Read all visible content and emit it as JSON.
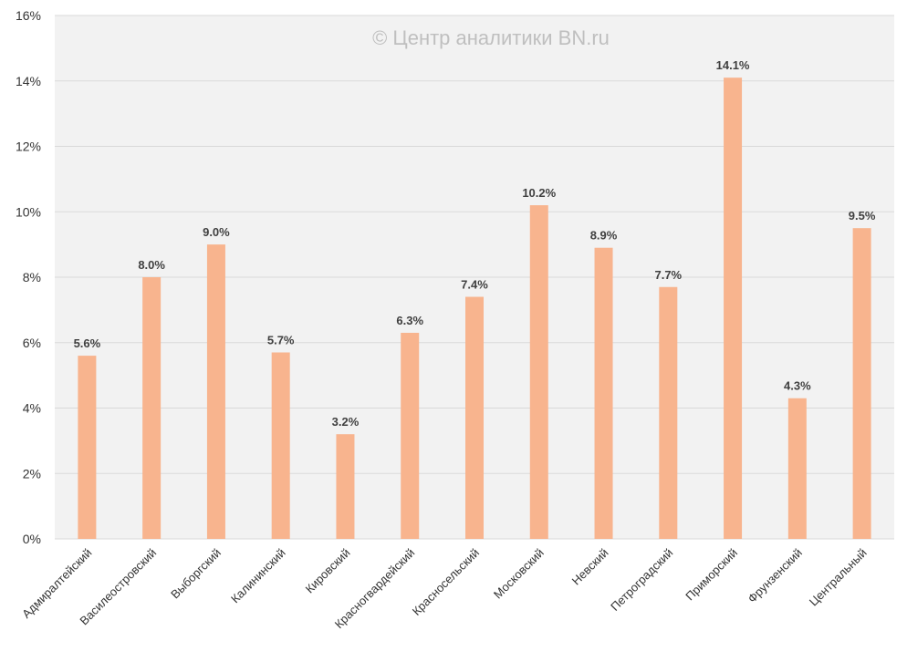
{
  "chart_data": {
    "type": "bar",
    "title": "",
    "watermark": "© Центр аналитики BN.ru",
    "xlabel": "",
    "ylabel": "",
    "ylim": [
      0,
      16
    ],
    "y_ticks": [
      {
        "value": 0,
        "label": "0%"
      },
      {
        "value": 2,
        "label": "2%"
      },
      {
        "value": 4,
        "label": "4%"
      },
      {
        "value": 6,
        "label": "6%"
      },
      {
        "value": 8,
        "label": "8%"
      },
      {
        "value": 10,
        "label": "10%"
      },
      {
        "value": 12,
        "label": "12%"
      },
      {
        "value": 14,
        "label": "14%"
      },
      {
        "value": 16,
        "label": "16%"
      }
    ],
    "grid": true,
    "categories": [
      "Адмиралтейский",
      "Василеостровский",
      "Выборгский",
      "Калининский",
      "Кировский",
      "Красногвардейский",
      "Красносельский",
      "Московский",
      "Невский",
      "Петроградский",
      "Приморский",
      "Фрунзенский",
      "Центральный"
    ],
    "values": [
      5.6,
      8.0,
      9.0,
      5.7,
      3.2,
      6.3,
      7.4,
      10.2,
      8.9,
      7.7,
      14.1,
      4.3,
      9.5
    ],
    "data_labels": [
      "5.6%",
      "8.0%",
      "9.0%",
      "5.7%",
      "3.2%",
      "6.3%",
      "7.4%",
      "10.2%",
      "8.9%",
      "7.7%",
      "14.1%",
      "4.3%",
      "9.5%"
    ],
    "colors": {
      "bar": "#f8b48e",
      "plot_bg": "#f2f2f2",
      "grid": "#d9d9d9",
      "axis_text": "#333333",
      "label_text": "#404040",
      "watermark": "#bfbfbf"
    }
  }
}
